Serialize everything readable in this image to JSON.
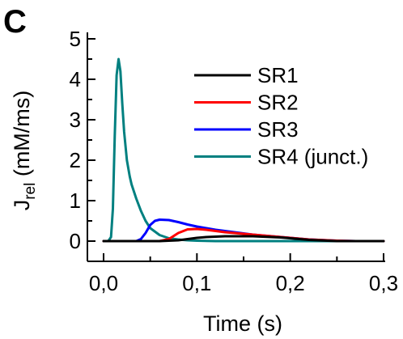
{
  "panel_label": "C",
  "chart_data": {
    "type": "line",
    "xlabel": "Time (s)",
    "ylabel": {
      "main": "J",
      "subscript": "rel",
      "unit": " (mM/ms)"
    },
    "xlim": [
      0.0,
      0.3
    ],
    "ylim": [
      -0.5,
      5.0
    ],
    "xticks": [
      0.0,
      0.1,
      0.2,
      0.3
    ],
    "xtick_labels": [
      "0,0",
      "0,1",
      "0,2",
      "0,3"
    ],
    "yticks": [
      0,
      1,
      2,
      3,
      4,
      5
    ],
    "ytick_labels": [
      "0",
      "1",
      "2",
      "3",
      "4",
      "5"
    ],
    "grid": false,
    "legend_position": "top-right",
    "series": [
      {
        "name": "SR1",
        "color": "#000000",
        "x": [
          0.0,
          0.05,
          0.06,
          0.07,
          0.08,
          0.09,
          0.1,
          0.11,
          0.12,
          0.13,
          0.14,
          0.15,
          0.16,
          0.17,
          0.18,
          0.19,
          0.2,
          0.21,
          0.22,
          0.23,
          0.24,
          0.25,
          0.27,
          0.3
        ],
        "y": [
          0.0,
          0.0,
          0.0,
          0.01,
          0.02,
          0.05,
          0.08,
          0.1,
          0.11,
          0.12,
          0.12,
          0.12,
          0.12,
          0.11,
          0.1,
          0.09,
          0.07,
          0.05,
          0.03,
          0.02,
          0.01,
          0.0,
          0.0,
          0.0
        ]
      },
      {
        "name": "SR2",
        "color": "#ff0000",
        "x": [
          0.0,
          0.06,
          0.07,
          0.08,
          0.09,
          0.1,
          0.11,
          0.12,
          0.13,
          0.14,
          0.15,
          0.16,
          0.17,
          0.18,
          0.19,
          0.2,
          0.21,
          0.22,
          0.23,
          0.24,
          0.25,
          0.27,
          0.3
        ],
        "y": [
          0.0,
          0.0,
          0.05,
          0.2,
          0.29,
          0.3,
          0.28,
          0.25,
          0.22,
          0.2,
          0.18,
          0.16,
          0.14,
          0.12,
          0.1,
          0.08,
          0.06,
          0.04,
          0.03,
          0.02,
          0.01,
          0.0,
          0.0
        ]
      },
      {
        "name": "SR3",
        "color": "#0000ff",
        "x": [
          0.0,
          0.035,
          0.04,
          0.045,
          0.05,
          0.055,
          0.06,
          0.07,
          0.08,
          0.09,
          0.1,
          0.11,
          0.12,
          0.13,
          0.14,
          0.15,
          0.16,
          0.17,
          0.18,
          0.19,
          0.2,
          0.21,
          0.22,
          0.23,
          0.24,
          0.25,
          0.27,
          0.3
        ],
        "y": [
          0.0,
          0.0,
          0.05,
          0.2,
          0.4,
          0.5,
          0.53,
          0.52,
          0.47,
          0.41,
          0.36,
          0.32,
          0.28,
          0.25,
          0.22,
          0.19,
          0.16,
          0.14,
          0.12,
          0.1,
          0.08,
          0.06,
          0.04,
          0.03,
          0.02,
          0.01,
          0.0,
          0.0
        ]
      },
      {
        "name": "SR4 (junct.)",
        "color": "#008080",
        "x": [
          0.0,
          0.005,
          0.008,
          0.01,
          0.012,
          0.014,
          0.016,
          0.018,
          0.02,
          0.022,
          0.025,
          0.028,
          0.03,
          0.035,
          0.04,
          0.045,
          0.05,
          0.06,
          0.07,
          0.08,
          0.09,
          0.1,
          0.12,
          0.15,
          0.2,
          0.3
        ],
        "y": [
          0.0,
          0.0,
          0.1,
          0.8,
          2.6,
          4.1,
          4.5,
          4.2,
          3.4,
          2.7,
          2.0,
          1.6,
          1.4,
          1.05,
          0.75,
          0.5,
          0.32,
          0.15,
          0.07,
          0.04,
          0.02,
          0.01,
          0.0,
          0.0,
          0.0,
          0.0
        ]
      }
    ]
  }
}
